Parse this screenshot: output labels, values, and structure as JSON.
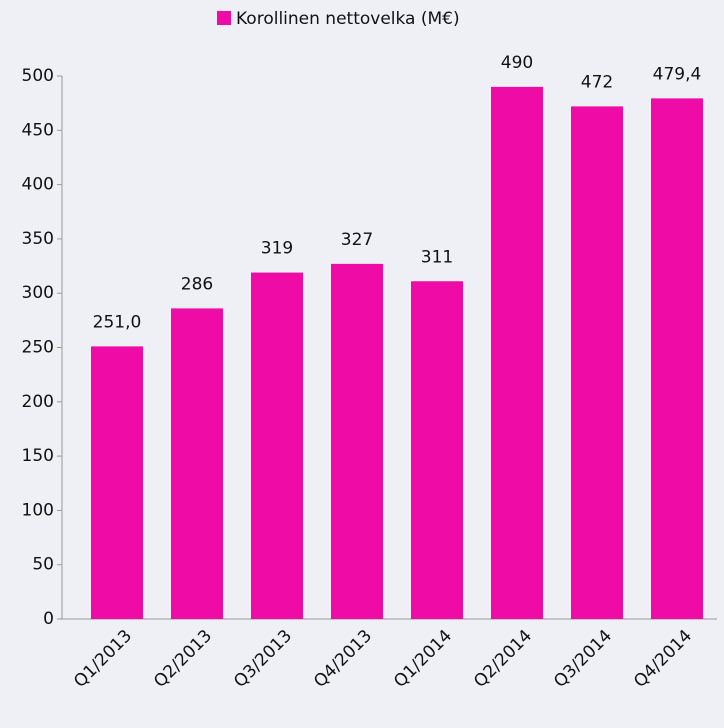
{
  "chart_data": {
    "type": "bar",
    "legend": "Korollinen nettovelka (M€)",
    "categories": [
      "Q1/2013",
      "Q2/2013",
      "Q3/2013",
      "Q4/2013",
      "Q1/2014",
      "Q2/2014",
      "Q3/2014",
      "Q4/2014"
    ],
    "values": [
      251.0,
      286,
      319,
      327,
      311,
      490,
      472,
      479.4
    ],
    "value_labels": [
      "251,0",
      "286",
      "319",
      "327",
      "311",
      "490",
      "472",
      "479,4"
    ],
    "color": "#ee0ba6",
    "ylim": [
      0,
      500
    ],
    "yticks": [
      0,
      50,
      100,
      150,
      200,
      250,
      300,
      350,
      400,
      450,
      500
    ],
    "grid": false,
    "legend_position": "top"
  }
}
